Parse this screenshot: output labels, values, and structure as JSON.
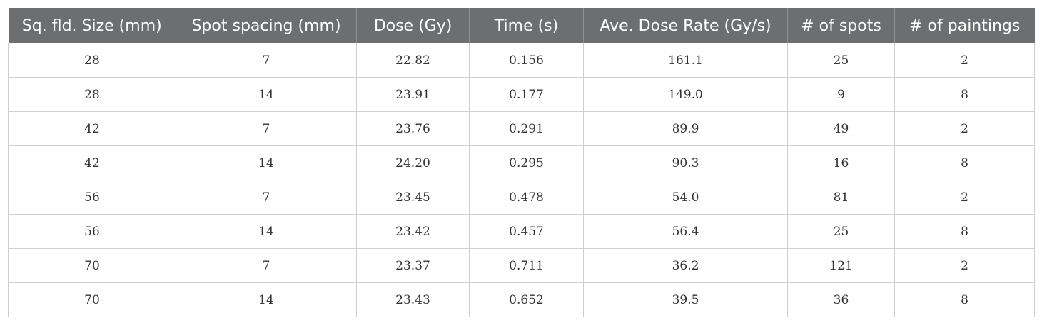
{
  "table": {
    "columns": [
      "Sq. fld. Size (mm)",
      "Spot spacing (mm)",
      "Dose (Gy)",
      "Time (s)",
      "Ave. Dose Rate (Gy/s)",
      "# of spots",
      "# of paintings"
    ],
    "rows": [
      [
        "28",
        "7",
        "22.82",
        "0.156",
        "161.1",
        "25",
        "2"
      ],
      [
        "28",
        "14",
        "23.91",
        "0.177",
        "149.0",
        "9",
        "8"
      ],
      [
        "42",
        "7",
        "23.76",
        "0.291",
        "89.9",
        "49",
        "2"
      ],
      [
        "42",
        "14",
        "24.20",
        "0.295",
        "90.3",
        "16",
        "8"
      ],
      [
        "56",
        "7",
        "23.45",
        "0.478",
        "54.0",
        "81",
        "2"
      ],
      [
        "56",
        "14",
        "23.42",
        "0.457",
        "56.4",
        "25",
        "8"
      ],
      [
        "70",
        "7",
        "23.37",
        "0.711",
        "36.2",
        "121",
        "2"
      ],
      [
        "70",
        "14",
        "23.43",
        "0.652",
        "39.5",
        "36",
        "8"
      ]
    ]
  },
  "colors": {
    "header_background": "#6d6e6f",
    "header_text": "#ffffff",
    "grid_line": "#cfcfcf",
    "cell_text": "#333333"
  }
}
